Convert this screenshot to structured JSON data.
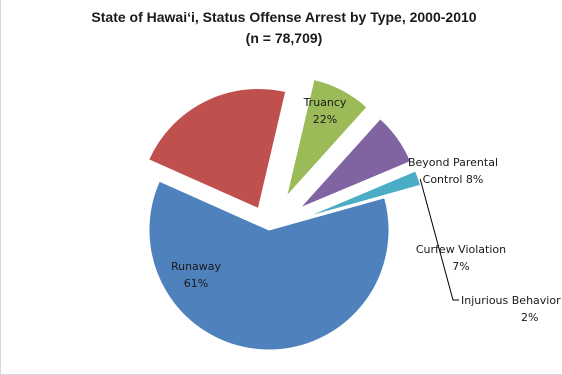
{
  "chart_data": {
    "type": "pie",
    "title": "State of Hawaiʻi, Status Offense Arrest by Type, 2000-2010",
    "subtitle": "(n = 78,709)",
    "exploded": true,
    "legend": "none",
    "slices": [
      {
        "name": "Truancy",
        "value": 22,
        "label_lines": [
          "Truancy",
          "22%"
        ],
        "color": "#c0504d"
      },
      {
        "name": "Beyond Parental Control",
        "value": 8,
        "label_lines": [
          "Beyond Parental",
          "Control 8%"
        ],
        "color": "#9bbb59"
      },
      {
        "name": "Curfew Violation",
        "value": 7,
        "label_lines": [
          "Curfew Violation",
          "7%"
        ],
        "color": "#8064a2"
      },
      {
        "name": "Injurious Behavior",
        "value": 2,
        "label_lines": [
          "Injurious Behavior",
          "2%"
        ],
        "color": "#4bacc6"
      },
      {
        "name": "Runaway",
        "value": 61,
        "label_lines": [
          "Runaway",
          "61%"
        ],
        "color": "#4f81bd"
      }
    ]
  }
}
